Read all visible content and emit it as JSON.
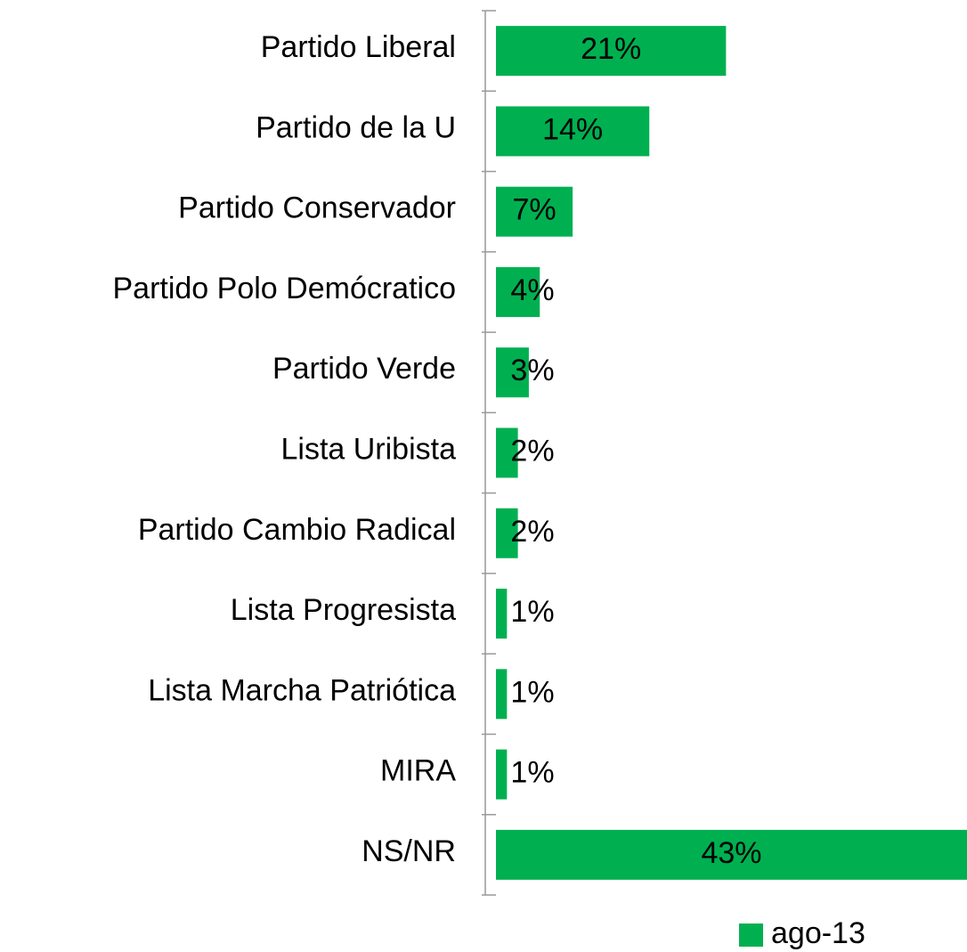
{
  "chart_data": {
    "type": "bar",
    "orientation": "horizontal",
    "categories": [
      "Partido Liberal",
      "Partido de la U",
      "Partido Conservador",
      "Partido Polo Demócratico",
      "Partido Verde",
      "Lista Uribista",
      "Partido Cambio Radical",
      "Lista Progresista",
      "Lista Marcha Patriótica",
      "MIRA",
      "NS/NR"
    ],
    "series": [
      {
        "name": "ago-13",
        "color": "#00b050",
        "values": [
          21,
          14,
          7,
          4,
          3,
          2,
          2,
          1,
          1,
          1,
          43
        ],
        "value_labels": [
          "21%",
          "14%",
          "7%",
          "4%",
          "3%",
          "2%",
          "2%",
          "1%",
          "1%",
          "1%",
          "43%"
        ]
      }
    ],
    "legend": "bottom-right"
  }
}
